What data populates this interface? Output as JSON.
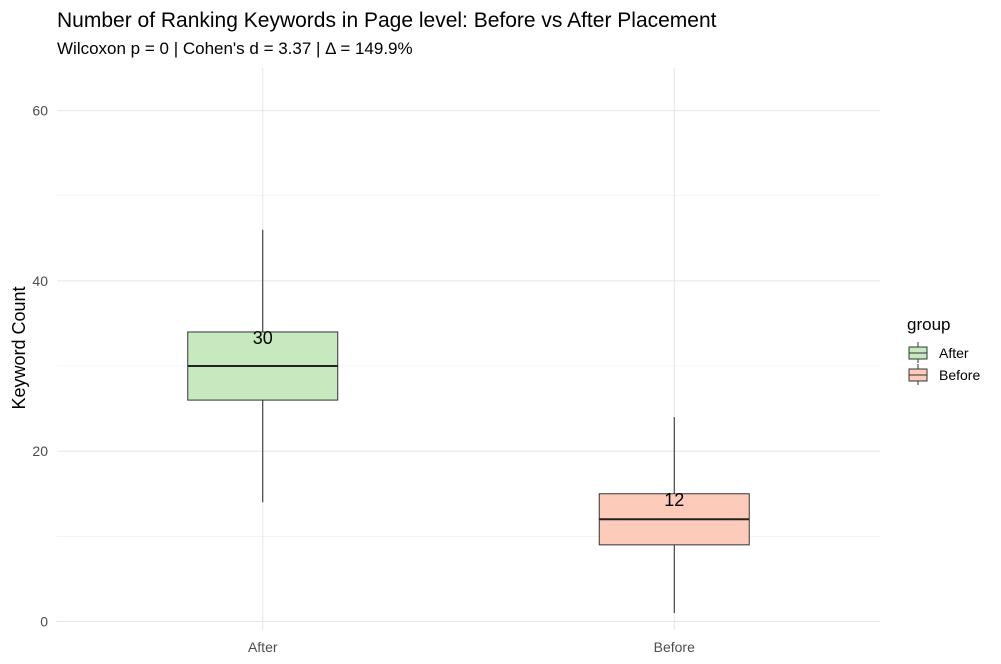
{
  "chart_data": {
    "type": "box",
    "title": "Number of Ranking Keywords in Page level: Before vs After Placement",
    "subtitle": "Wilcoxon p = 0 | Cohen's d = 3.37 | Δ = 149.9%",
    "xlabel": "",
    "ylabel": "Keyword Count",
    "ylim": [
      -1,
      65
    ],
    "yticks": [
      0,
      20,
      40,
      60
    ],
    "grid": true,
    "legend": {
      "title": "group",
      "position": "right"
    },
    "categories": [
      "After",
      "Before"
    ],
    "series": [
      {
        "name": "After",
        "whisker_low": 14,
        "q1": 26,
        "median": 30,
        "q3": 34,
        "whisker_high": 46,
        "median_label": "30",
        "fill": "#c7e9c0"
      },
      {
        "name": "Before",
        "whisker_low": 1,
        "q1": 9,
        "median": 12,
        "q3": 15,
        "whisker_high": 24,
        "median_label": "12",
        "fill": "#fdcbb9"
      }
    ]
  }
}
